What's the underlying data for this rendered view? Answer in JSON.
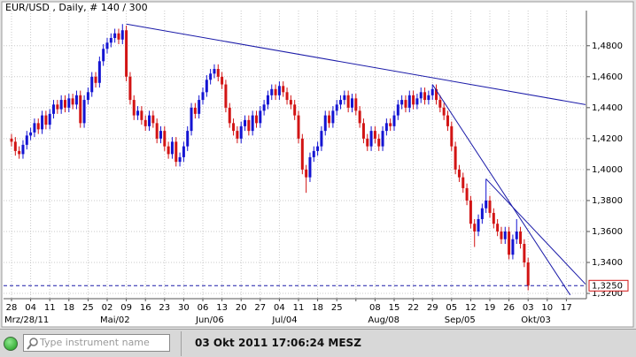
{
  "header": {
    "title": "EUR/USD , Daily, # 140 / 300"
  },
  "chart_data": {
    "type": "candlestick",
    "up_color": "#1414d2",
    "down_color": "#d21414",
    "trendline_color": "#1a1aa8",
    "grid": true,
    "ylim": [
      1.3166,
      1.5027
    ],
    "yticks": [
      {
        "value": 1.32,
        "label": "1,3200"
      },
      {
        "value": 1.34,
        "label": "1,3400"
      },
      {
        "value": 1.36,
        "label": "1,3600"
      },
      {
        "value": 1.38,
        "label": "1,3800"
      },
      {
        "value": 1.4,
        "label": "1,4000"
      },
      {
        "value": 1.42,
        "label": "1,4200"
      },
      {
        "value": 1.44,
        "label": "1,4400"
      },
      {
        "value": 1.46,
        "label": "1,4600"
      },
      {
        "value": 1.48,
        "label": "1,4800"
      }
    ],
    "week_labels": [
      "28",
      "04",
      "11",
      "18",
      "25",
      "02",
      "09",
      "16",
      "23",
      "30",
      "06",
      "13",
      "20",
      "27",
      "04",
      "11",
      "18",
      "25",
      null,
      "08",
      "15",
      "22",
      "29",
      "05",
      "12",
      "19",
      "26",
      "03",
      "10",
      "17"
    ],
    "month_labels": [
      "Mrz/28/11",
      null,
      null,
      null,
      null,
      "Mai/02",
      null,
      null,
      null,
      null,
      "Jun/06",
      null,
      null,
      null,
      "Jul/04",
      null,
      null,
      null,
      null,
      "Aug/08",
      null,
      null,
      null,
      "Sep/05",
      null,
      null,
      null,
      "Okt/03",
      null,
      null
    ],
    "current_price": {
      "value": 1.325,
      "label": "1,3250"
    },
    "trendlines": [
      {
        "from": [
          30,
          1.494
        ],
        "to": [
          150,
          1.442
        ]
      },
      {
        "from": [
          110,
          1.455
        ],
        "to": [
          146,
          1.319
        ]
      },
      {
        "from": [
          124,
          1.394
        ],
        "to": [
          150,
          1.326
        ]
      }
    ],
    "candles": [
      [
        1.42,
        1.423,
        1.415,
        1.418
      ],
      [
        1.418,
        1.421,
        1.409,
        1.412
      ],
      [
        1.412,
        1.415,
        1.407,
        1.41
      ],
      [
        1.41,
        1.419,
        1.407,
        1.416
      ],
      [
        1.416,
        1.425,
        1.413,
        1.422
      ],
      [
        1.422,
        1.427,
        1.419,
        1.424
      ],
      [
        1.424,
        1.433,
        1.421,
        1.43
      ],
      [
        1.43,
        1.433,
        1.423,
        1.426
      ],
      [
        1.426,
        1.438,
        1.423,
        1.435
      ],
      [
        1.435,
        1.438,
        1.426,
        1.429
      ],
      [
        1.429,
        1.439,
        1.426,
        1.436
      ],
      [
        1.436,
        1.445,
        1.433,
        1.442
      ],
      [
        1.442,
        1.445,
        1.436,
        1.439
      ],
      [
        1.439,
        1.448,
        1.436,
        1.445
      ],
      [
        1.445,
        1.448,
        1.437,
        1.44
      ],
      [
        1.44,
        1.449,
        1.437,
        1.446
      ],
      [
        1.446,
        1.449,
        1.439,
        1.442
      ],
      [
        1.442,
        1.451,
        1.439,
        1.448
      ],
      [
        1.448,
        1.451,
        1.427,
        1.43
      ],
      [
        1.43,
        1.448,
        1.427,
        1.445
      ],
      [
        1.445,
        1.453,
        1.442,
        1.45
      ],
      [
        1.45,
        1.463,
        1.447,
        1.46
      ],
      [
        1.46,
        1.463,
        1.453,
        1.456
      ],
      [
        1.456,
        1.473,
        1.453,
        1.47
      ],
      [
        1.47,
        1.481,
        1.467,
        1.478
      ],
      [
        1.478,
        1.485,
        1.475,
        1.482
      ],
      [
        1.482,
        1.488,
        1.479,
        1.485
      ],
      [
        1.485,
        1.491,
        1.482,
        1.488
      ],
      [
        1.488,
        1.491,
        1.481,
        1.484
      ],
      [
        1.484,
        1.494,
        1.481,
        1.49
      ],
      [
        1.49,
        1.493,
        1.457,
        1.46
      ],
      [
        1.46,
        1.463,
        1.442,
        1.445
      ],
      [
        1.445,
        1.448,
        1.432,
        1.435
      ],
      [
        1.435,
        1.441,
        1.432,
        1.438
      ],
      [
        1.438,
        1.441,
        1.429,
        1.432
      ],
      [
        1.432,
        1.435,
        1.425,
        1.428
      ],
      [
        1.428,
        1.438,
        1.425,
        1.435
      ],
      [
        1.435,
        1.438,
        1.427,
        1.43
      ],
      [
        1.43,
        1.433,
        1.417,
        1.42
      ],
      [
        1.42,
        1.428,
        1.417,
        1.425
      ],
      [
        1.425,
        1.428,
        1.412,
        1.415
      ],
      [
        1.415,
        1.418,
        1.407,
        1.41
      ],
      [
        1.41,
        1.421,
        1.407,
        1.418
      ],
      [
        1.418,
        1.421,
        1.402,
        1.405
      ],
      [
        1.405,
        1.411,
        1.402,
        1.408
      ],
      [
        1.408,
        1.418,
        1.405,
        1.415
      ],
      [
        1.415,
        1.428,
        1.412,
        1.425
      ],
      [
        1.425,
        1.443,
        1.422,
        1.44
      ],
      [
        1.44,
        1.443,
        1.433,
        1.436
      ],
      [
        1.436,
        1.448,
        1.433,
        1.445
      ],
      [
        1.445,
        1.453,
        1.442,
        1.45
      ],
      [
        1.45,
        1.461,
        1.447,
        1.458
      ],
      [
        1.458,
        1.465,
        1.455,
        1.462
      ],
      [
        1.462,
        1.468,
        1.459,
        1.465
      ],
      [
        1.465,
        1.468,
        1.457,
        1.46
      ],
      [
        1.46,
        1.463,
        1.452,
        1.455
      ],
      [
        1.455,
        1.458,
        1.437,
        1.44
      ],
      [
        1.44,
        1.443,
        1.427,
        1.43
      ],
      [
        1.43,
        1.433,
        1.422,
        1.425
      ],
      [
        1.425,
        1.428,
        1.417,
        1.42
      ],
      [
        1.42,
        1.431,
        1.417,
        1.428
      ],
      [
        1.428,
        1.435,
        1.425,
        1.432
      ],
      [
        1.432,
        1.435,
        1.422,
        1.425
      ],
      [
        1.425,
        1.438,
        1.422,
        1.435
      ],
      [
        1.435,
        1.438,
        1.427,
        1.43
      ],
      [
        1.43,
        1.441,
        1.427,
        1.438
      ],
      [
        1.438,
        1.445,
        1.435,
        1.442
      ],
      [
        1.442,
        1.451,
        1.439,
        1.448
      ],
      [
        1.448,
        1.455,
        1.445,
        1.452
      ],
      [
        1.452,
        1.455,
        1.445,
        1.448
      ],
      [
        1.448,
        1.457,
        1.445,
        1.454
      ],
      [
        1.454,
        1.457,
        1.447,
        1.45
      ],
      [
        1.45,
        1.453,
        1.442,
        1.445
      ],
      [
        1.445,
        1.448,
        1.439,
        1.442
      ],
      [
        1.442,
        1.445,
        1.432,
        1.435
      ],
      [
        1.435,
        1.438,
        1.417,
        1.42
      ],
      [
        1.42,
        1.423,
        1.397,
        1.4
      ],
      [
        1.4,
        1.403,
        1.385,
        1.395
      ],
      [
        1.395,
        1.411,
        1.392,
        1.408
      ],
      [
        1.408,
        1.415,
        1.405,
        1.412
      ],
      [
        1.412,
        1.418,
        1.409,
        1.415
      ],
      [
        1.415,
        1.428,
        1.412,
        1.425
      ],
      [
        1.425,
        1.438,
        1.422,
        1.435
      ],
      [
        1.435,
        1.438,
        1.427,
        1.43
      ],
      [
        1.43,
        1.441,
        1.427,
        1.438
      ],
      [
        1.438,
        1.445,
        1.435,
        1.442
      ],
      [
        1.442,
        1.448,
        1.439,
        1.445
      ],
      [
        1.445,
        1.451,
        1.442,
        1.448
      ],
      [
        1.448,
        1.451,
        1.437,
        1.44
      ],
      [
        1.44,
        1.449,
        1.437,
        1.446
      ],
      [
        1.446,
        1.449,
        1.435,
        1.438
      ],
      [
        1.438,
        1.441,
        1.427,
        1.43
      ],
      [
        1.43,
        1.433,
        1.417,
        1.42
      ],
      [
        1.42,
        1.423,
        1.412,
        1.415
      ],
      [
        1.415,
        1.428,
        1.412,
        1.425
      ],
      [
        1.425,
        1.428,
        1.417,
        1.42
      ],
      [
        1.42,
        1.423,
        1.412,
        1.415
      ],
      [
        1.415,
        1.428,
        1.412,
        1.425
      ],
      [
        1.425,
        1.433,
        1.422,
        1.43
      ],
      [
        1.43,
        1.433,
        1.425,
        1.428
      ],
      [
        1.428,
        1.438,
        1.425,
        1.435
      ],
      [
        1.435,
        1.445,
        1.432,
        1.442
      ],
      [
        1.442,
        1.448,
        1.439,
        1.445
      ],
      [
        1.445,
        1.448,
        1.437,
        1.44
      ],
      [
        1.44,
        1.451,
        1.437,
        1.448
      ],
      [
        1.448,
        1.451,
        1.439,
        1.442
      ],
      [
        1.442,
        1.449,
        1.439,
        1.446
      ],
      [
        1.446,
        1.453,
        1.443,
        1.45
      ],
      [
        1.45,
        1.453,
        1.442,
        1.445
      ],
      [
        1.445,
        1.451,
        1.442,
        1.448
      ],
      [
        1.448,
        1.455,
        1.445,
        1.452
      ],
      [
        1.452,
        1.455,
        1.442,
        1.445
      ],
      [
        1.445,
        1.448,
        1.437,
        1.44
      ],
      [
        1.44,
        1.443,
        1.432,
        1.435
      ],
      [
        1.435,
        1.438,
        1.425,
        1.428
      ],
      [
        1.428,
        1.431,
        1.412,
        1.415
      ],
      [
        1.415,
        1.418,
        1.397,
        1.4
      ],
      [
        1.4,
        1.403,
        1.392,
        1.395
      ],
      [
        1.395,
        1.398,
        1.385,
        1.388
      ],
      [
        1.388,
        1.391,
        1.377,
        1.38
      ],
      [
        1.38,
        1.383,
        1.362,
        1.365
      ],
      [
        1.365,
        1.368,
        1.35,
        1.36
      ],
      [
        1.36,
        1.371,
        1.357,
        1.368
      ],
      [
        1.368,
        1.378,
        1.365,
        1.375
      ],
      [
        1.375,
        1.394,
        1.372,
        1.38
      ],
      [
        1.38,
        1.383,
        1.369,
        1.372
      ],
      [
        1.372,
        1.375,
        1.362,
        1.365
      ],
      [
        1.365,
        1.368,
        1.357,
        1.36
      ],
      [
        1.36,
        1.363,
        1.352,
        1.355
      ],
      [
        1.355,
        1.363,
        1.352,
        1.36
      ],
      [
        1.36,
        1.363,
        1.342,
        1.345
      ],
      [
        1.345,
        1.358,
        1.342,
        1.355
      ],
      [
        1.355,
        1.368,
        1.352,
        1.36
      ],
      [
        1.36,
        1.363,
        1.349,
        1.352
      ],
      [
        1.352,
        1.355,
        1.337,
        1.34
      ],
      [
        1.34,
        1.343,
        1.322,
        1.325
      ]
    ]
  },
  "footer": {
    "search_placeholder": "Type instrument name",
    "timestamp": "03 Okt 2011 17:06:24 MESZ"
  }
}
